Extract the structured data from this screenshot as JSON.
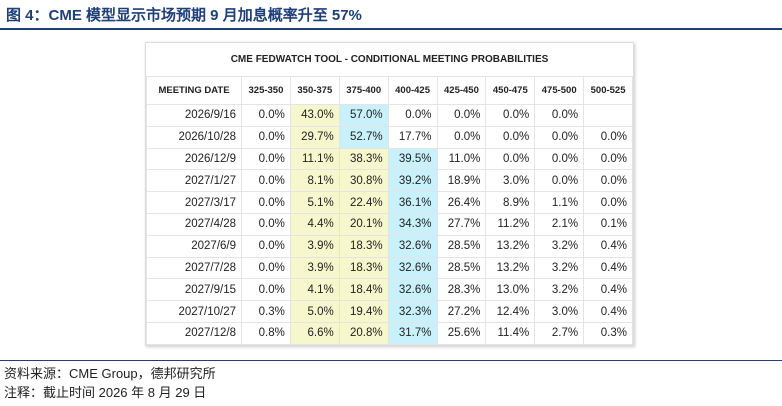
{
  "header": {
    "title": "图 4：CME 模型显示市场预期 9 月加息概率升至 57%"
  },
  "table": {
    "title": "CME FEDWATCH TOOL - CONDITIONAL MEETING PROBABILITIES",
    "columns": [
      "MEETING DATE",
      "325-350",
      "350-375",
      "375-400",
      "400-425",
      "425-450",
      "450-475",
      "475-500",
      "500-525"
    ],
    "rows": [
      [
        "2026/9/16",
        "0.0%",
        "43.0%",
        "57.0%",
        "0.0%",
        "0.0%",
        "0.0%",
        "0.0%",
        null
      ],
      [
        "2026/10/28",
        "0.0%",
        "29.7%",
        "52.7%",
        "17.7%",
        "0.0%",
        "0.0%",
        "0.0%",
        "0.0%"
      ],
      [
        "2026/12/9",
        "0.0%",
        "11.1%",
        "38.3%",
        "39.5%",
        "11.0%",
        "0.0%",
        "0.0%",
        "0.0%"
      ],
      [
        "2027/1/27",
        "0.0%",
        "8.1%",
        "30.8%",
        "39.2%",
        "18.9%",
        "3.0%",
        "0.0%",
        "0.0%"
      ],
      [
        "2027/3/17",
        "0.0%",
        "5.1%",
        "22.4%",
        "36.1%",
        "26.4%",
        "8.9%",
        "1.1%",
        "0.0%"
      ],
      [
        "2027/4/28",
        "0.0%",
        "4.4%",
        "20.1%",
        "34.3%",
        "27.7%",
        "11.2%",
        "2.1%",
        "0.1%"
      ],
      [
        "2027/6/9",
        "0.0%",
        "3.9%",
        "18.3%",
        "32.6%",
        "28.5%",
        "13.2%",
        "3.2%",
        "0.4%"
      ],
      [
        "2027/7/28",
        "0.0%",
        "3.9%",
        "18.3%",
        "32.6%",
        "28.5%",
        "13.2%",
        "3.2%",
        "0.4%"
      ],
      [
        "2027/9/15",
        "0.0%",
        "4.1%",
        "18.4%",
        "32.6%",
        "28.3%",
        "13.0%",
        "3.2%",
        "0.4%"
      ],
      [
        "2027/10/27",
        "0.3%",
        "5.0%",
        "19.4%",
        "32.3%",
        "27.2%",
        "12.4%",
        "3.0%",
        "0.4%"
      ],
      [
        "2027/12/8",
        "0.8%",
        "6.6%",
        "20.8%",
        "31.7%",
        "25.6%",
        "11.4%",
        "2.7%",
        "0.3%"
      ]
    ],
    "highlight_colors": {
      "range": "#f6f7cc",
      "max": "#c9f1fb"
    }
  },
  "footer": {
    "source": "资料来源：CME Group，德邦研究所",
    "note": "注释：截止时间 2026 年 8 月 29 日"
  }
}
